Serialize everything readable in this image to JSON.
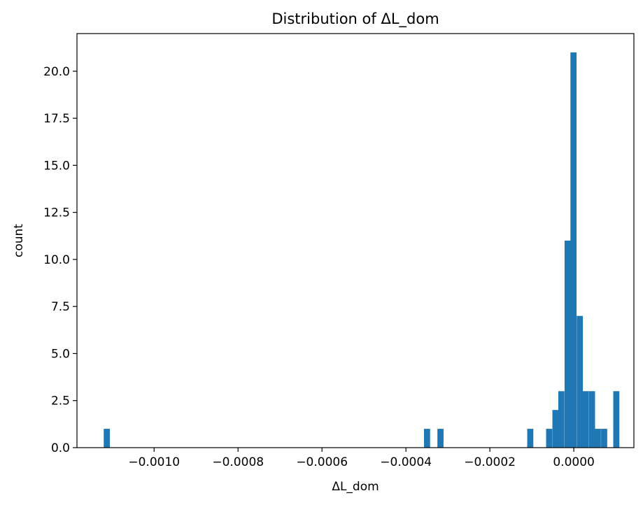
{
  "chart_data": {
    "type": "bar",
    "title": "Distribution of ΔL_dom",
    "xlabel": "ΔL_dom",
    "ylabel": "count",
    "xlim": [
      -0.0011838,
      0.0001432
    ],
    "ylim": [
      0,
      22
    ],
    "bin_width": 1.46e-05,
    "bins": [
      {
        "x0": -0.00112,
        "count": 1
      },
      {
        "x0": -0.000357,
        "count": 1
      },
      {
        "x0": -0.000325,
        "count": 1
      },
      {
        "x0": -0.000111,
        "count": 1
      },
      {
        "x0": -6.6e-05,
        "count": 1
      },
      {
        "x0": -5.1e-05,
        "count": 2
      },
      {
        "x0": -3.7e-05,
        "count": 3
      },
      {
        "x0": -2.2e-05,
        "count": 11
      },
      {
        "x0": -8e-06,
        "count": 21
      },
      {
        "x0": 7e-06,
        "count": 7
      },
      {
        "x0": 2.1e-05,
        "count": 3
      },
      {
        "x0": 3.6e-05,
        "count": 3
      },
      {
        "x0": 5e-05,
        "count": 1
      },
      {
        "x0": 6.5e-05,
        "count": 1
      },
      {
        "x0": 9.4e-05,
        "count": 3
      }
    ],
    "x_ticks": [
      {
        "value": -0.001,
        "label": "−0.0010"
      },
      {
        "value": -0.0008,
        "label": "−0.0008"
      },
      {
        "value": -0.0006,
        "label": "−0.0006"
      },
      {
        "value": -0.0004,
        "label": "−0.0004"
      },
      {
        "value": -0.0002,
        "label": "−0.0002"
      },
      {
        "value": 0.0,
        "label": "0.0000"
      }
    ],
    "y_ticks": [
      {
        "value": 0,
        "label": "0.0"
      },
      {
        "value": 2.5,
        "label": "2.5"
      },
      {
        "value": 5,
        "label": "5.0"
      },
      {
        "value": 7.5,
        "label": "7.5"
      },
      {
        "value": 10,
        "label": "10.0"
      },
      {
        "value": 12.5,
        "label": "12.5"
      },
      {
        "value": 15,
        "label": "15.0"
      },
      {
        "value": 17.5,
        "label": "17.5"
      },
      {
        "value": 20,
        "label": "20.0"
      }
    ],
    "bar_color": "#1f77b4",
    "grid": false
  }
}
